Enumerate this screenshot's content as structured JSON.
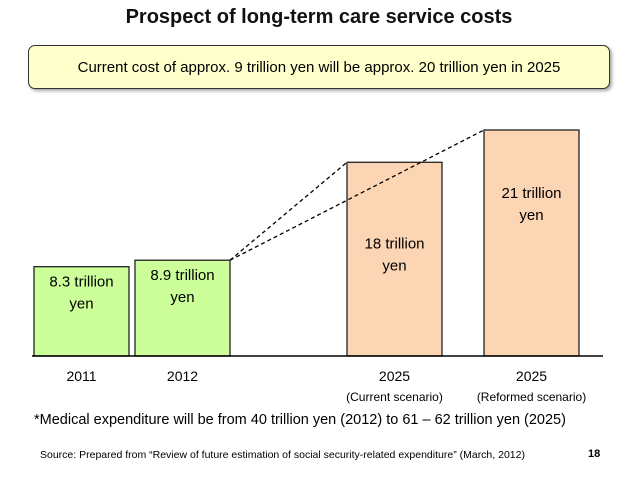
{
  "title": "Prospect of long-term care service costs",
  "summary": "Current cost of approx. 9 trillion yen will be approx. 20 trillion yen in 2025",
  "colors": {
    "green_bar": "#ccff99",
    "orange_bar": "#fcd5b4",
    "summary_bg": "#ffffcc"
  },
  "chart_data": {
    "type": "bar",
    "categories": [
      "2011",
      "2012",
      "2025",
      "2025"
    ],
    "sub_labels": [
      "",
      "",
      "(Current scenario)",
      "(Reformed scenario)"
    ],
    "values": [
      8.3,
      8.9,
      18,
      21
    ],
    "bar_labels": [
      [
        "8.3 trillion",
        "yen"
      ],
      [
        "8.9 trillion",
        "yen"
      ],
      [
        "18 trillion",
        "yen"
      ],
      [
        "21 trillion",
        "yen"
      ]
    ],
    "title": "Prospect of long-term care service costs",
    "xlabel": "",
    "ylabel": "",
    "ylim": [
      0,
      23
    ],
    "grid": false,
    "legend": "none"
  },
  "note": "*Medical expenditure will be from 40 trillion yen (2012) to 61 – 62 trillion yen (2025)",
  "source": "Source: Prepared from “Review of future estimation of social security-related expenditure” (March, 2012)",
  "page_number": "18"
}
